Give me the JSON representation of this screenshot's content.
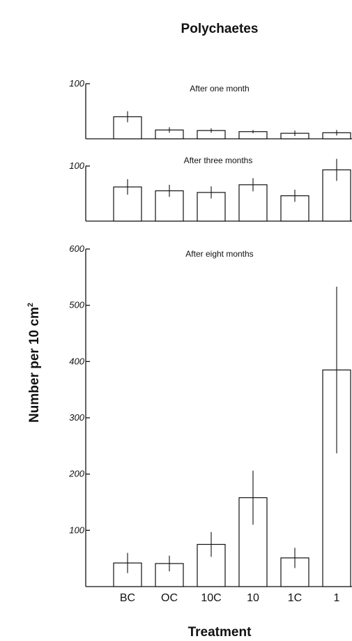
{
  "chart_data": {
    "type": "bar",
    "title": "Polychaetes",
    "xlabel": "Treatment",
    "ylabel": "Number per 10 cm",
    "ylabel_sup": "2",
    "categories": [
      "BC",
      "OC",
      "10C",
      "10",
      "1C",
      "1"
    ],
    "panels": [
      {
        "name": "After one month",
        "ylim": [
          0,
          100
        ],
        "yticks": [
          100
        ],
        "values": [
          40,
          16,
          15,
          13,
          10,
          11
        ],
        "err": [
          10,
          5,
          4,
          3,
          5,
          5
        ]
      },
      {
        "name": "After three months",
        "ylim": [
          0,
          100
        ],
        "yticks": [
          100
        ],
        "values": [
          62,
          55,
          52,
          66,
          46,
          93
        ],
        "err": [
          14,
          11,
          11,
          12,
          11,
          20
        ]
      },
      {
        "name": "After eight months",
        "ylim": [
          0,
          600
        ],
        "yticks": [
          100,
          200,
          300,
          400,
          500,
          600
        ],
        "values": [
          42,
          41,
          75,
          158,
          51,
          385
        ],
        "err": [
          18,
          14,
          22,
          48,
          18,
          148
        ]
      }
    ]
  }
}
